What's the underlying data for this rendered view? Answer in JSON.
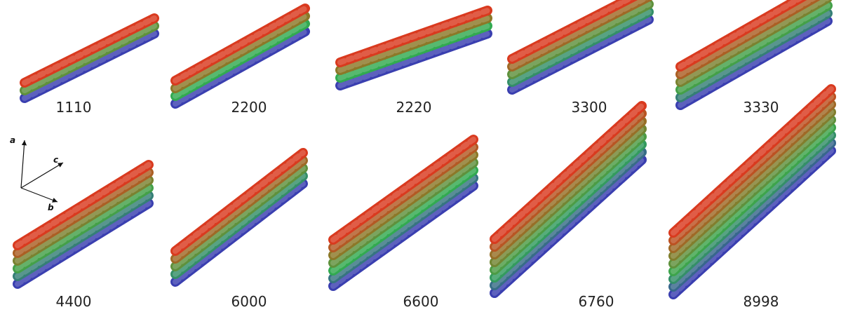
{
  "panels": [
    {
      "label": "1110"
    },
    {
      "label": "2200"
    },
    {
      "label": "2220"
    },
    {
      "label": "3300"
    },
    {
      "label": "3330"
    },
    {
      "label": "4400"
    },
    {
      "label": "6000"
    },
    {
      "label": "6600"
    },
    {
      "label": "6760"
    },
    {
      "label": "8998"
    }
  ],
  "axes": {
    "a": "a",
    "b": "b",
    "c": "c"
  }
}
